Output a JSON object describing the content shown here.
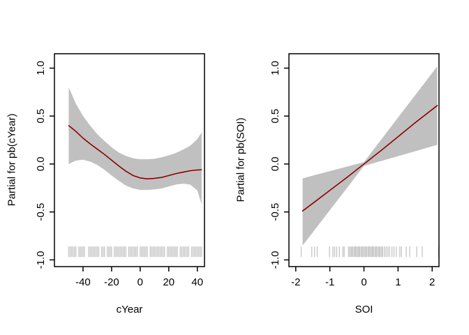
{
  "figure": {
    "background": "#ffffff",
    "description": "Two partial-effect term plots with shaded confidence bands and rug marks"
  },
  "chart_data": [
    {
      "type": "line",
      "xlabel": "cYear",
      "ylabel": "Partial for pb(cYear)",
      "xlim": [
        -60,
        45
      ],
      "ylim": [
        -1.07,
        1.15
      ],
      "x_ticks": [
        -40,
        -20,
        0,
        20,
        40
      ],
      "x_tick_labels": [
        "-40",
        "-20",
        "0",
        "20",
        "40"
      ],
      "y_ticks": [
        1.0,
        0.5,
        0.0,
        -0.5,
        -1.0
      ],
      "y_tick_labels": [
        "1.0",
        "0.5",
        "0.0",
        "-0.5",
        "-1.0"
      ],
      "grid": false,
      "legend": false,
      "line": {
        "x": [
          -50,
          -45,
          -40,
          -35,
          -30,
          -25,
          -20,
          -15,
          -10,
          -5,
          0,
          5,
          10,
          15,
          20,
          25,
          30,
          35,
          40,
          43
        ],
        "y": [
          0.4,
          0.34,
          0.27,
          0.21,
          0.155,
          0.1,
          0.04,
          -0.02,
          -0.075,
          -0.12,
          -0.145,
          -0.155,
          -0.15,
          -0.14,
          -0.12,
          -0.1,
          -0.085,
          -0.07,
          -0.062,
          -0.06
        ]
      },
      "band": {
        "x": [
          -50,
          -45,
          -40,
          -35,
          -30,
          -25,
          -20,
          -15,
          -10,
          -5,
          0,
          5,
          10,
          15,
          20,
          25,
          30,
          35,
          40,
          43
        ],
        "upper": [
          0.8,
          0.63,
          0.5,
          0.4,
          0.31,
          0.24,
          0.175,
          0.12,
          0.085,
          0.06,
          0.05,
          0.05,
          0.055,
          0.07,
          0.09,
          0.115,
          0.15,
          0.19,
          0.26,
          0.33
        ],
        "lower": [
          0.0,
          0.035,
          0.045,
          0.025,
          -0.01,
          -0.06,
          -0.12,
          -0.175,
          -0.225,
          -0.255,
          -0.27,
          -0.27,
          -0.265,
          -0.255,
          -0.235,
          -0.215,
          -0.205,
          -0.215,
          -0.275,
          -0.42
        ]
      },
      "rug_x": [
        -50,
        -49,
        -48,
        -47,
        -46,
        -45,
        -43,
        -42,
        -41,
        -40,
        -39,
        -36,
        -35,
        -34,
        -33,
        -32,
        -31,
        -30,
        -29,
        -27,
        -26,
        -25,
        -23,
        -22,
        -21,
        -20,
        -18,
        -17,
        -16,
        -15,
        -14,
        -13,
        -12,
        -11,
        -10,
        -8,
        -7,
        -6,
        -5,
        -4,
        -3,
        -2,
        0,
        1,
        2,
        3,
        4,
        5,
        7,
        8,
        9,
        10,
        11,
        12,
        13,
        14,
        15,
        16,
        17,
        19,
        20,
        21,
        22,
        23,
        24,
        25,
        26,
        28,
        29,
        30,
        31,
        32,
        33,
        34,
        36,
        37,
        38,
        39,
        40,
        41,
        42,
        43
      ],
      "rug_y": [
        -0.97,
        -0.86
      ],
      "colors": {
        "line": "#8b0000",
        "band": "#c0c0c0",
        "rug": "#c8c8c8",
        "axis": "#000000"
      }
    },
    {
      "type": "line",
      "xlabel": "SOI",
      "ylabel": "Partial for pb(SOI)",
      "xlim": [
        -2.2,
        2.2
      ],
      "ylim": [
        -1.07,
        1.15
      ],
      "x_ticks": [
        -2,
        -1,
        0,
        1,
        2
      ],
      "x_tick_labels": [
        "-2",
        "-1",
        "0",
        "1",
        "2"
      ],
      "y_ticks": [
        1.0,
        0.5,
        0.0,
        -0.5,
        -1.0
      ],
      "y_tick_labels": [
        "1.0",
        "0.5",
        "0.0",
        "-0.5",
        "-1.0"
      ],
      "grid": false,
      "legend": false,
      "line": {
        "x": [
          -1.8,
          -1.5,
          -1.0,
          -0.5,
          0,
          0.5,
          1.0,
          1.5,
          2.15
        ],
        "y": [
          -0.49,
          -0.41,
          -0.275,
          -0.14,
          0.0,
          0.14,
          0.285,
          0.43,
          0.61
        ]
      },
      "band": {
        "x": [
          -1.8,
          -1.5,
          -1.0,
          -0.5,
          0,
          0.5,
          1.0,
          1.5,
          2.15
        ],
        "upper": [
          -0.15,
          -0.121,
          -0.074,
          -0.027,
          0.02,
          0.252,
          0.485,
          0.717,
          1.02
        ],
        "lower": [
          -0.85,
          -0.712,
          -0.481,
          -0.251,
          -0.02,
          0.031,
          0.082,
          0.133,
          0.2
        ]
      },
      "rug_x": [
        -1.84,
        -1.53,
        -1.45,
        -1.37,
        -1.01,
        -0.91,
        -0.86,
        -0.8,
        -0.72,
        -0.62,
        -0.58,
        -0.45,
        -0.42,
        -0.38,
        -0.35,
        -0.32,
        -0.28,
        -0.25,
        -0.22,
        -0.18,
        -0.15,
        -0.12,
        -0.08,
        -0.05,
        -0.02,
        0.02,
        0.05,
        0.08,
        0.12,
        0.15,
        0.18,
        0.22,
        0.25,
        0.28,
        0.32,
        0.35,
        0.38,
        0.42,
        0.45,
        0.48,
        0.52,
        0.55,
        0.6,
        0.65,
        0.7,
        0.75,
        0.82,
        0.88,
        0.95,
        1.05,
        1.1,
        1.24,
        1.34,
        1.55,
        1.71,
        2.19
      ],
      "rug_y": [
        -0.97,
        -0.86
      ],
      "colors": {
        "line": "#8b0000",
        "band": "#c0c0c0",
        "rug": "#c8c8c8",
        "axis": "#000000"
      }
    }
  ]
}
